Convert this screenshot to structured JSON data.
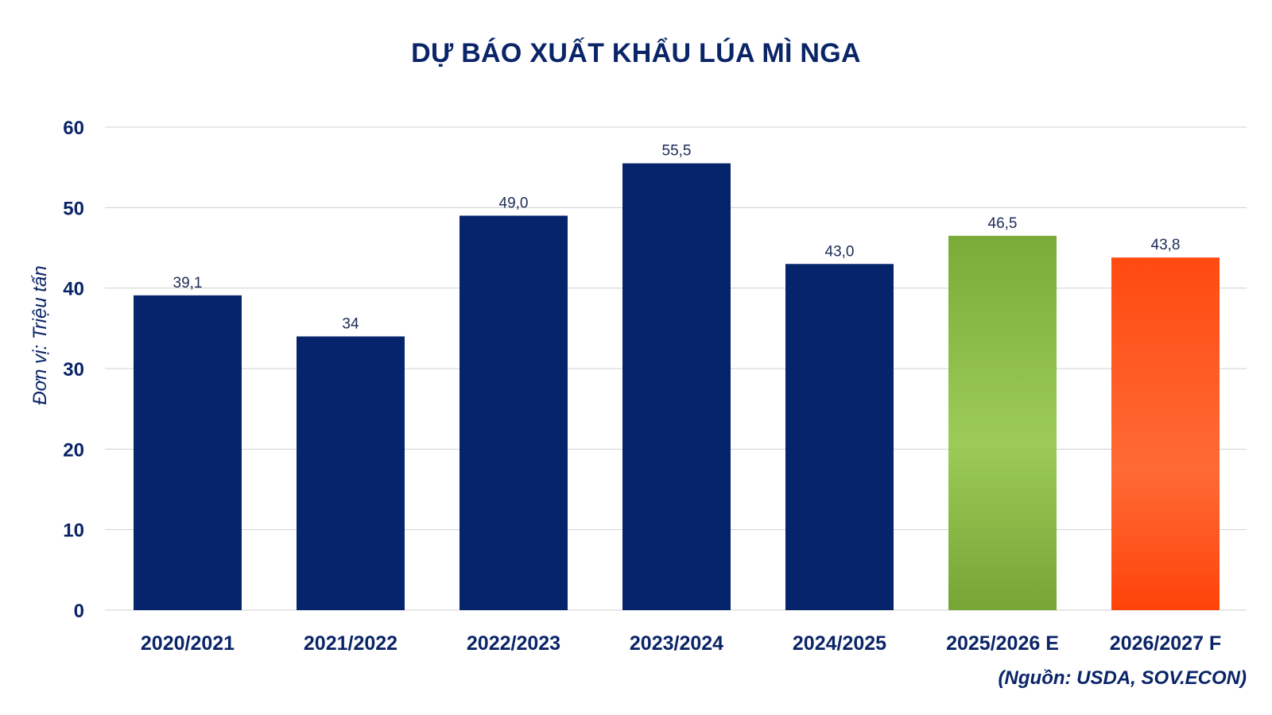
{
  "chart_data": {
    "type": "bar",
    "title": "DỰ BÁO XUẤT KHẨU LÚA MÌ NGA",
    "ylabel": "Đơn vị: Triệu tấn",
    "xlabel": "",
    "ylim": [
      0,
      60
    ],
    "yticks": [
      "0",
      "10",
      "20",
      "30",
      "40",
      "50",
      "60"
    ],
    "grid": true,
    "categories": [
      "2020/2021",
      "2021/2022",
      "2022/2023",
      "2023/2024",
      "2024/2025",
      "2025/2026 E",
      "2026/2027 F"
    ],
    "values": [
      39.1,
      34,
      49.0,
      55.5,
      43.0,
      46.5,
      43.8
    ],
    "value_labels": [
      "39,1",
      "34",
      "49,0",
      "55,5",
      "43,0",
      "46,5",
      "43,8"
    ],
    "bar_colors": [
      "#06246b",
      "#06246b",
      "#06246b",
      "#06246b",
      "#06246b",
      "#8bbd45",
      "#ff5a1f"
    ],
    "source": "(Nguồn: USDA, SOV.ECON)"
  }
}
